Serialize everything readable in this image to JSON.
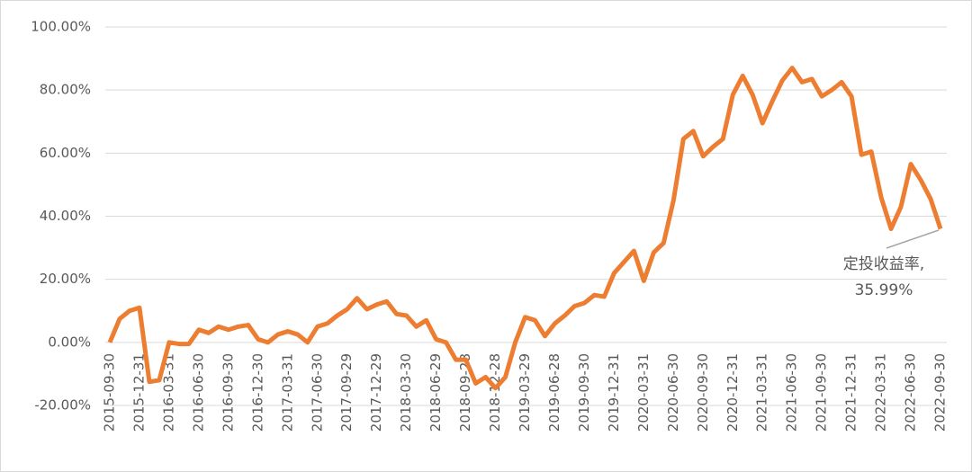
{
  "chart_data": {
    "type": "line",
    "categories": [
      "2015-09-30",
      null,
      null,
      "2015-12-31",
      null,
      null,
      "2016-03-31",
      null,
      null,
      "2016-06-30",
      null,
      null,
      "2016-09-30",
      null,
      null,
      "2016-12-30",
      null,
      null,
      "2017-03-31",
      null,
      null,
      "2017-06-30",
      null,
      null,
      "2017-09-29",
      null,
      null,
      "2017-12-29",
      null,
      null,
      "2018-03-30",
      null,
      null,
      "2018-06-29",
      null,
      null,
      "2018-09-28",
      null,
      null,
      "2018-12-28",
      null,
      null,
      "2019-03-29",
      null,
      null,
      "2019-06-28",
      null,
      null,
      "2019-09-30",
      null,
      null,
      "2019-12-31",
      null,
      null,
      "2020-03-31",
      null,
      null,
      "2020-06-30",
      null,
      null,
      "2020-09-30",
      null,
      null,
      "2020-12-31",
      null,
      null,
      "2021-03-31",
      null,
      null,
      "2021-06-30",
      null,
      null,
      "2021-09-30",
      null,
      null,
      "2021-12-31",
      null,
      null,
      "2022-03-31",
      null,
      null,
      "2022-06-30",
      null,
      null,
      "2022-09-30"
    ],
    "series": [
      {
        "name": "定投收益率",
        "color": "#ED7D31",
        "values": [
          0,
          7.5,
          10,
          11,
          -12.5,
          -12,
          0,
          -0.5,
          -0.5,
          4,
          3,
          5,
          4,
          5,
          5.5,
          1,
          0,
          2.5,
          3.5,
          2.5,
          0,
          5,
          6,
          8.5,
          10.5,
          14,
          10.5,
          12,
          13,
          9,
          8.5,
          5,
          7,
          1,
          0,
          -5.5,
          -5.5,
          -13,
          -11,
          -14.5,
          -11,
          0,
          8,
          7,
          2,
          6,
          8.5,
          11.5,
          12.5,
          15,
          14.5,
          22,
          25.5,
          29,
          19.5,
          28.5,
          31.5,
          45,
          64.5,
          67,
          59,
          62,
          64.5,
          78.5,
          84.5,
          78.5,
          69.5,
          76.5,
          83,
          87,
          82.5,
          83.5,
          78,
          80,
          82.5,
          78,
          59.5,
          60.5,
          46,
          36,
          43,
          56.5,
          51.5,
          45.5,
          35.99
        ]
      }
    ],
    "annotation": {
      "text": "定投收益率,",
      "value_label": "35.99%"
    },
    "ylim": [
      -20,
      100
    ],
    "yticks": [
      {
        "value": -20,
        "label": "-20.00%"
      },
      {
        "value": 0,
        "label": "0.00%"
      },
      {
        "value": 20,
        "label": "20.00%"
      },
      {
        "value": 40,
        "label": "40.00%"
      },
      {
        "value": 60,
        "label": "60.00%"
      },
      {
        "value": 80,
        "label": "80.00%"
      },
      {
        "value": 100,
        "label": "100.00%"
      }
    ],
    "grid": true
  }
}
